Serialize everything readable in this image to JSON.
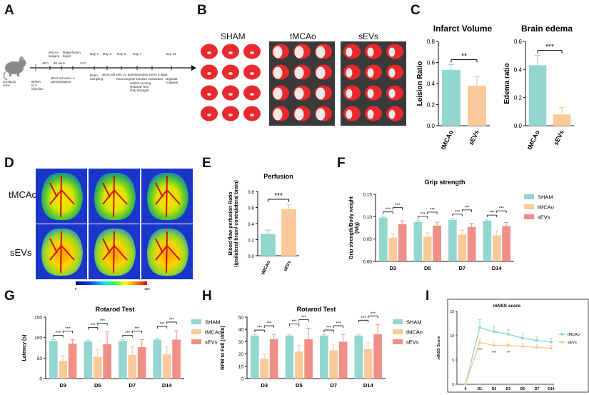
{
  "panels": {
    "A": "A",
    "B": "B",
    "C": "C",
    "D": "D",
    "E": "E",
    "F": "F",
    "G": "G",
    "H": "H",
    "I": "I"
  },
  "timeline": {
    "mouse_label": "C57BL/6\nmice",
    "markers": [
      {
        "text": "siRNA\nICV\ninjection",
        "pos": "below"
      },
      {
        "text": "48 h",
        "pos": "above"
      },
      {
        "text": "tMCAo\nsurgery",
        "pos": "above"
      },
      {
        "text": "60 mins",
        "pos": "above"
      },
      {
        "text": "Reperfusion\nbegin",
        "pos": "above"
      },
      {
        "text": "sEVs tail vein i.v.\nadministration",
        "pos": "below"
      },
      {
        "text": "24 h",
        "pos": "above"
      },
      {
        "text": "Day 1",
        "pos": "above"
      },
      {
        "text": "Day 3",
        "pos": "above"
      },
      {
        "text": "Day 5",
        "pos": "above"
      },
      {
        "text": "Day 7",
        "pos": "above"
      },
      {
        "text": "Day 14",
        "pos": "above"
      },
      {
        "text": "Brain\nsampling",
        "pos": "below"
      },
      {
        "text": "sEVs tail vein i.v. administration every 3 days",
        "pos": "below"
      },
      {
        "text": "Neurological function evaluation",
        "pos": "below"
      },
      {
        "text": "mNSS scoring\nRotarod Test\nGrip strength",
        "pos": "below"
      },
      {
        "text": "DigiGait\nAnalysis",
        "pos": "below"
      }
    ]
  },
  "ttc": {
    "groups": [
      "SHAM",
      "tMCAo",
      "sEVs"
    ]
  },
  "perfusion_images": {
    "rows": [
      "tMCAo",
      "sEVs"
    ],
    "scale_min": "0",
    "scale_max": "350"
  },
  "colors": {
    "sham": "#93d6cf",
    "tmcao": "#f9c99a",
    "sevs": "#f08f86",
    "i_tmcao": "#8fd3cd",
    "i_sevs": "#f6c98e"
  },
  "chart_data": [
    {
      "id": "C1",
      "type": "bar",
      "title": "Infarct Volume",
      "ylabel": "Leision Ratio",
      "categories": [
        "tMCAo",
        "sEVs"
      ],
      "values": [
        0.53,
        0.38
      ],
      "errors": [
        0.05,
        0.09
      ],
      "ylim": [
        0,
        0.8
      ],
      "yticks": [
        "0.0",
        "0.2",
        "0.4",
        "0.6",
        "0.8"
      ],
      "sig": [
        "**"
      ]
    },
    {
      "id": "C2",
      "type": "bar",
      "title": "Brain edema",
      "ylabel": "Edema ratio",
      "categories": [
        "tMCAo",
        "sEVs"
      ],
      "values": [
        0.43,
        0.08
      ],
      "errors": [
        0.07,
        0.05
      ],
      "ylim": [
        0,
        0.6
      ],
      "yticks": [
        "0.0",
        "0.2",
        "0.4",
        "0.6"
      ],
      "sig": [
        "***"
      ]
    },
    {
      "id": "E",
      "type": "bar",
      "title": "Perfusion",
      "ylabel": "Blood flow perfusion Ratio\n(ipsilateral brain/ contralateral brain)",
      "categories": [
        "tMCAo",
        "sEVs"
      ],
      "values": [
        0.27,
        0.58
      ],
      "errors": [
        0.05,
        0.06
      ],
      "ylim": [
        0,
        0.8
      ],
      "yticks": [
        "0.0",
        "0.2",
        "0.4",
        "0.6",
        "0.8"
      ],
      "sig": [
        "***"
      ]
    },
    {
      "id": "F",
      "type": "bar",
      "title": "Grip strength",
      "ylabel": "Grip strength/Body weight\n(N/g)",
      "categories": [
        "D3",
        "D5",
        "D7",
        "D14"
      ],
      "series": [
        {
          "name": "SHAM",
          "values": [
            0.098,
            0.088,
            0.093,
            0.091
          ],
          "errors": [
            0.003,
            0.003,
            0.003,
            0.003
          ]
        },
        {
          "name": "tMCAo",
          "values": [
            0.053,
            0.055,
            0.06,
            0.058
          ],
          "errors": [
            0.009,
            0.009,
            0.01,
            0.01
          ]
        },
        {
          "name": "sEVs",
          "values": [
            0.083,
            0.08,
            0.077,
            0.079
          ],
          "errors": [
            0.008,
            0.008,
            0.008,
            0.008
          ]
        }
      ],
      "ylim": [
        0,
        0.15
      ],
      "yticks": [
        "0.00",
        "0.05",
        "0.10",
        "0.15"
      ],
      "sig": [
        "***",
        "***"
      ]
    },
    {
      "id": "G",
      "type": "bar",
      "title": "Rotarod Test",
      "ylabel": "Latency (s)",
      "categories": [
        "D3",
        "D5",
        "D7",
        "D14"
      ],
      "series": [
        {
          "name": "SHAM",
          "values": [
            92,
            91,
            92,
            95
          ],
          "errors": [
            3,
            3,
            3,
            3
          ]
        },
        {
          "name": "tMCAo",
          "values": [
            43,
            53,
            58,
            59
          ],
          "errors": [
            14,
            18,
            20,
            18
          ]
        },
        {
          "name": "sEVs",
          "values": [
            85,
            84,
            77,
            95
          ],
          "errors": [
            10,
            30,
            18,
            22
          ]
        }
      ],
      "ylim": [
        0,
        150
      ],
      "yticks": [
        "0",
        "50",
        "100",
        "150"
      ],
      "sig": [
        "***",
        "***"
      ]
    },
    {
      "id": "H",
      "type": "bar",
      "title": "Rotarod Test",
      "ylabel": "RPM to Fall (r/min)",
      "categories": [
        "D3",
        "D5",
        "D7",
        "D14"
      ],
      "series": [
        {
          "name": "SHAM",
          "values": [
            35,
            35,
            35,
            35
          ],
          "errors": [
            1,
            1,
            1,
            1
          ]
        },
        {
          "name": "tMCAo",
          "values": [
            16,
            22,
            23,
            24
          ],
          "errors": [
            4,
            5,
            5,
            5
          ]
        },
        {
          "name": "sEVs",
          "values": [
            32,
            32,
            30,
            36
          ],
          "errors": [
            4,
            9,
            6,
            8
          ]
        }
      ],
      "ylim": [
        0,
        50
      ],
      "yticks": [
        "0",
        "10",
        "20",
        "30",
        "40",
        "50"
      ],
      "sig": [
        "***",
        "***"
      ]
    },
    {
      "id": "I",
      "type": "line",
      "title": "mNSS score",
      "ylabel": "mNSS Score",
      "x": [
        "0",
        "D1",
        "D2",
        "D3",
        "D5",
        "D7",
        "D14"
      ],
      "series": [
        {
          "name": "tMCAo",
          "values": [
            0,
            11.7,
            10.8,
            10.3,
            9.5,
            9.0,
            8.7
          ],
          "errors": [
            0,
            1.6,
            1.2,
            1.0,
            0.9,
            0.8,
            0.8
          ]
        },
        {
          "name": "sEVs",
          "values": [
            0,
            8.6,
            8.0,
            8.0,
            7.8,
            7.6,
            7.4
          ],
          "errors": [
            0,
            0.8,
            0.7,
            0.7,
            0.6,
            0.6,
            0.6
          ]
        }
      ],
      "ylim": [
        0,
        15
      ],
      "yticks": [
        "0",
        "5",
        "10",
        "15"
      ],
      "sig": [
        {
          "x": "D1",
          "text": "***"
        },
        {
          "x": "D2",
          "text": "***"
        },
        {
          "x": "D3",
          "text": "**"
        }
      ]
    }
  ]
}
